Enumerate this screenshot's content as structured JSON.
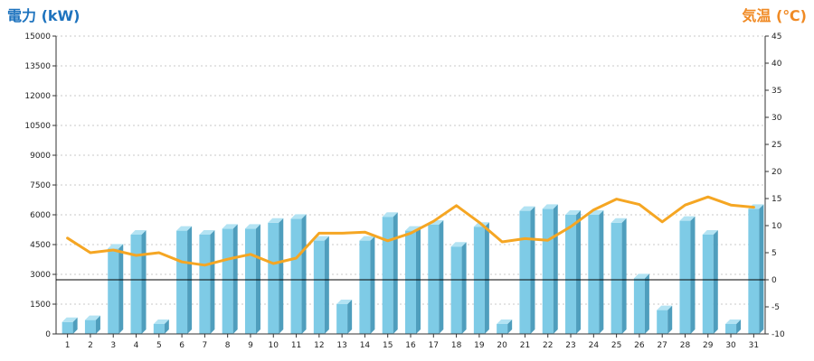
{
  "colors": {
    "bar_front": "#7ecbe6",
    "bar_side": "#4f9ebd",
    "bar_top": "#b3e3f3",
    "line": "#f5a623",
    "left_label": "#1e73be",
    "right_label": "#f08a24",
    "grid": "#c8c8c8",
    "baseline": "#000000"
  },
  "chart_data": {
    "type": "bar",
    "x_categories": [
      "1",
      "2",
      "3",
      "4",
      "5",
      "6",
      "7",
      "8",
      "9",
      "10",
      "11",
      "12",
      "13",
      "14",
      "15",
      "16",
      "17",
      "18",
      "19",
      "20",
      "21",
      "22",
      "23",
      "24",
      "25",
      "26",
      "27",
      "28",
      "29",
      "30",
      "31"
    ],
    "series": [
      {
        "type": "bar",
        "axis": "left",
        "values": [
          600,
          700,
          4300,
          5000,
          500,
          5200,
          5000,
          5300,
          5300,
          5600,
          5800,
          4700,
          1500,
          4700,
          5900,
          5200,
          5500,
          4400,
          5400,
          500,
          6200,
          6300,
          6000,
          6000,
          5600,
          2800,
          1200,
          5700,
          5000,
          500,
          6300
        ]
      },
      {
        "type": "line",
        "axis": "right",
        "values": [
          7.7,
          5.0,
          5.5,
          4.5,
          5.0,
          3.3,
          2.7,
          3.8,
          4.7,
          3.0,
          4.0,
          8.6,
          8.6,
          8.8,
          7.2,
          8.6,
          10.8,
          13.7,
          10.6,
          7.0,
          7.6,
          7.3,
          9.8,
          12.9,
          14.9,
          13.9,
          10.7,
          13.8,
          15.3,
          13.8,
          13.4
        ]
      }
    ],
    "y_left": {
      "label": "電力 (kW)",
      "min": 0,
      "max": 15000,
      "ticks": [
        "0",
        "1500",
        "3000",
        "4500",
        "6000",
        "7500",
        "9000",
        "10500",
        "12000",
        "13500",
        "15000"
      ]
    },
    "y_right": {
      "label": "気温 (℃)",
      "min": -10,
      "max": 45,
      "ticks": [
        "-10",
        "-5",
        "0",
        "5",
        "10",
        "15",
        "20",
        "25",
        "30",
        "35",
        "40",
        "45"
      ]
    },
    "grid": true
  }
}
